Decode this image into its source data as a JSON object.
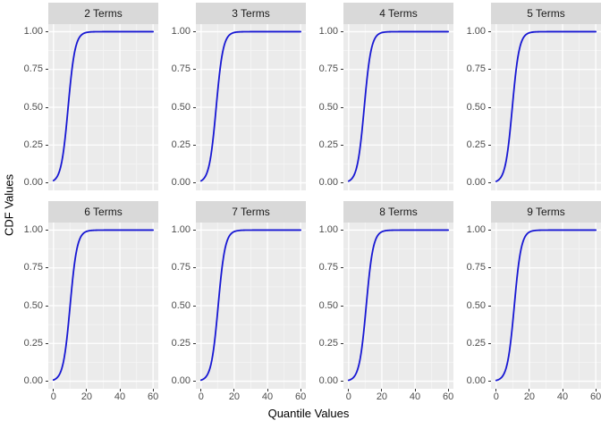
{
  "figure": {
    "colors": {
      "strip_bg": "#d9d9d9",
      "strip_text": "#1a1a1a",
      "panel_bg": "#ebebeb",
      "grid_major": "#ffffff",
      "grid_minor": "#f4f4f4",
      "curve": "#1717d3",
      "tick_label": "#4d4d4d",
      "tick_mark": "#333333",
      "axis_title": "#000000"
    }
  },
  "chart_data": {
    "type": "line",
    "layout": "facet_wrap 2 rows x 4 cols",
    "title": "",
    "xlabel": "Quantile Values",
    "ylabel": "CDF Values",
    "x_range": [
      -3.15,
      63.15
    ],
    "y_range": [
      -0.05,
      1.05
    ],
    "x_ticks": [
      0,
      20,
      40,
      60
    ],
    "x_tick_labels": [
      "0",
      "20",
      "40",
      "60"
    ],
    "y_ticks": [
      0,
      0.25,
      0.5,
      0.75,
      1
    ],
    "y_tick_labels": [
      "0.00",
      "0.25",
      "0.50",
      "0.75",
      "1.00"
    ],
    "x_minor": [
      10,
      30,
      50
    ],
    "y_minor": [
      0.125,
      0.375,
      0.625,
      0.875
    ],
    "grid": "major white, minor white on grey panel",
    "legend": "none",
    "points_x": [
      0,
      2,
      4,
      6,
      8,
      10,
      12,
      14,
      16,
      18,
      20,
      24,
      30,
      40,
      60
    ],
    "series": [
      {
        "name": "2 Terms",
        "model": {
          "type": "logistic_cdf",
          "midpoint": 8.8,
          "scale": 2.1
        },
        "y": [
          0.015,
          0.038,
          0.092,
          0.209,
          0.406,
          0.639,
          0.821,
          0.923,
          0.969,
          0.988,
          0.995,
          0.999,
          1,
          1,
          1
        ]
      },
      {
        "name": "3 Terms",
        "model": {
          "type": "logistic_cdf",
          "midpoint": 9.1,
          "scale": 2.1
        },
        "y": [
          0.013,
          0.033,
          0.081,
          0.186,
          0.372,
          0.606,
          0.799,
          0.912,
          0.964,
          0.986,
          0.994,
          0.999,
          1,
          1,
          1
        ]
      },
      {
        "name": "4 Terms",
        "model": {
          "type": "logistic_cdf",
          "midpoint": 9.4,
          "scale": 2.1
        },
        "y": [
          0.011,
          0.029,
          0.071,
          0.165,
          0.339,
          0.571,
          0.775,
          0.899,
          0.959,
          0.984,
          0.994,
          0.999,
          1,
          1,
          1
        ]
      },
      {
        "name": "5 Terms",
        "model": {
          "type": "logistic_cdf",
          "midpoint": 9.7,
          "scale": 2.1
        },
        "y": [
          0.01,
          0.025,
          0.062,
          0.147,
          0.308,
          0.536,
          0.749,
          0.886,
          0.953,
          0.981,
          0.993,
          0.999,
          1,
          1,
          1
        ]
      },
      {
        "name": "6 Terms",
        "model": {
          "type": "logistic_cdf",
          "midpoint": 10.0,
          "scale": 2.1
        },
        "y": [
          0.009,
          0.022,
          0.054,
          0.13,
          0.279,
          0.5,
          0.722,
          0.87,
          0.946,
          0.978,
          0.991,
          0.999,
          1,
          1,
          1
        ]
      },
      {
        "name": "7 Terms",
        "model": {
          "type": "logistic_cdf",
          "midpoint": 10.3,
          "scale": 2.1
        },
        "y": [
          0.007,
          0.019,
          0.047,
          0.114,
          0.251,
          0.464,
          0.692,
          0.853,
          0.938,
          0.975,
          0.99,
          0.999,
          1,
          1,
          1
        ]
      },
      {
        "name": "8 Terms",
        "model": {
          "type": "logistic_cdf",
          "midpoint": 10.6,
          "scale": 2.1
        },
        "y": [
          0.006,
          0.016,
          0.041,
          0.101,
          0.225,
          0.429,
          0.661,
          0.835,
          0.929,
          0.971,
          0.989,
          0.998,
          1,
          1,
          1
        ]
      },
      {
        "name": "9 Terms",
        "model": {
          "type": "logistic_cdf",
          "midpoint": 10.9,
          "scale": 2.1
        },
        "y": [
          0.006,
          0.014,
          0.036,
          0.088,
          0.201,
          0.394,
          0.628,
          0.814,
          0.919,
          0.967,
          0.987,
          0.998,
          1,
          1,
          1
        ]
      }
    ]
  }
}
